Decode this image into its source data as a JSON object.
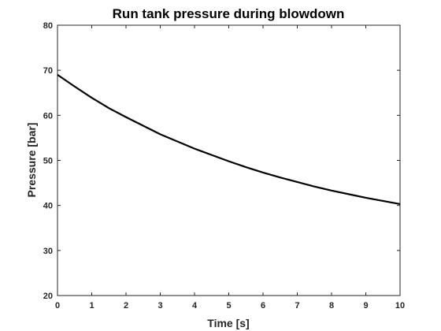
{
  "chart_data": {
    "type": "line",
    "title": "Run tank pressure during blowdown",
    "xlabel": "Time [s]",
    "ylabel": "Pressure [bar]",
    "xlim": [
      0,
      10
    ],
    "ylim": [
      20,
      80
    ],
    "xticks": [
      0,
      1,
      2,
      3,
      4,
      5,
      6,
      7,
      8,
      9,
      10
    ],
    "yticks": [
      20,
      30,
      40,
      50,
      60,
      70,
      80
    ],
    "grid": false,
    "legend": "none",
    "series": [
      {
        "x": [
          0,
          0.5,
          1,
          1.5,
          2,
          2.5,
          3,
          3.5,
          4,
          4.5,
          5,
          5.5,
          6,
          6.5,
          7,
          7.5,
          8,
          8.5,
          9,
          9.5,
          10
        ],
        "y": [
          69.0,
          66.4,
          63.9,
          61.6,
          59.6,
          57.7,
          55.8,
          54.2,
          52.6,
          51.2,
          49.8,
          48.5,
          47.3,
          46.2,
          45.2,
          44.2,
          43.3,
          42.5,
          41.7,
          41.0,
          40.3
        ],
        "color": "#000000"
      }
    ]
  }
}
